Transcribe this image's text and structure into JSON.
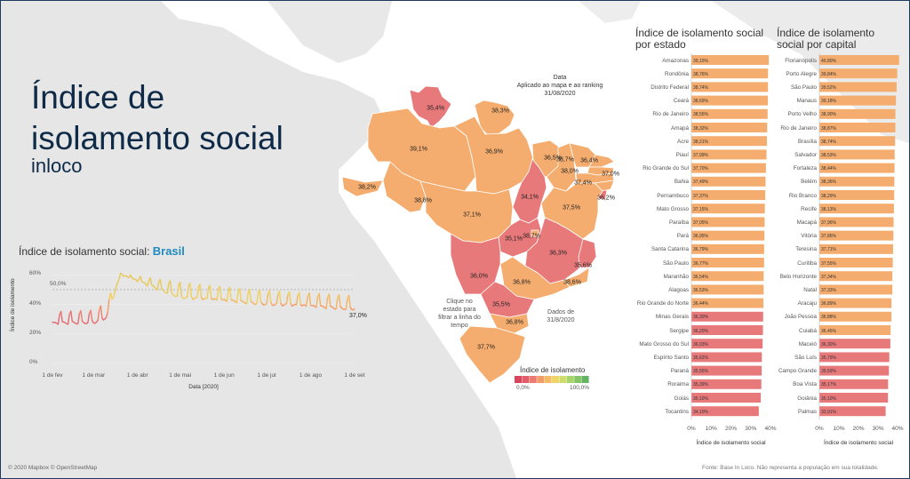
{
  "title_line1": "Índice de",
  "title_line2": "isolamento social",
  "brand": "inloco",
  "line_chart": {
    "title_prefix": "Índice de isolamento social: ",
    "title_highlight": "Brasil",
    "ylabel": "Índice de isolamento",
    "xlabel": "Data [2020]",
    "reference_label": "50,0%",
    "last_label": "37,0%"
  },
  "map_notes": {
    "data_title": "Data",
    "data_sub": "Aplicado ao mapa e ao ranking",
    "data_date": "31/08/2020",
    "click_note": "Clique no estado para filtrar a linha do tempo",
    "dados_note": "Dados de 31/8/2020",
    "legend_title": "Índice de isolamento",
    "legend_min": "0,0%",
    "legend_max": "100,0%"
  },
  "chart_data": [
    {
      "type": "line",
      "title": "Índice de isolamento social: Brasil",
      "xlabel": "Data [2020]",
      "ylabel": "Índice de isolamento",
      "x_ticks": [
        "1 de fev",
        "1 de mar",
        "1 de abr",
        "1 de mai",
        "1 de jun",
        "1 de jul",
        "1 de ago",
        "1 de set"
      ],
      "y_ticks": [
        "0%",
        "20%",
        "40%",
        "60%"
      ],
      "ylim": [
        0,
        65
      ],
      "reference_line": 50.0,
      "weekday_base": [
        [
          0,
          27
        ],
        [
          30,
          28
        ],
        [
          38,
          31
        ],
        [
          48,
          60
        ],
        [
          90,
          45
        ],
        [
          140,
          41
        ],
        [
          210,
          37
        ]
      ],
      "weekend_peak": [
        [
          0,
          35
        ],
        [
          30,
          36
        ],
        [
          38,
          42
        ],
        [
          48,
          61
        ],
        [
          90,
          55
        ],
        [
          140,
          50
        ],
        [
          210,
          46
        ]
      ],
      "last_value": 37.0
    },
    {
      "type": "bar",
      "title": "Índice de isolamento social por estado",
      "xlabel": "Índice de isolamento social",
      "x_ticks": [
        "0%",
        "10%",
        "20%",
        "30%",
        "40%"
      ],
      "xlim": [
        0,
        40
      ],
      "categories": [
        "Amazonas",
        "Rondônia",
        "Distrito Federal",
        "Ceará",
        "Rio de Janeiro",
        "Amapá",
        "Acre",
        "Piauí",
        "Rio Grande do Sul",
        "Bahia",
        "Pernambuco",
        "Mato Grosso",
        "Paraíba",
        "Pará",
        "Santa Catarina",
        "São Paulo",
        "Maranhão",
        "Alagoas",
        "Rio Grande do Norte",
        "Minas Gerais",
        "Sergipe",
        "Mato Grosso do Sul",
        "Espírito Santo",
        "Paraná",
        "Roraima",
        "Goiás",
        "Tocantins"
      ],
      "values": [
        39.15,
        38.76,
        38.74,
        38.69,
        38.55,
        38.32,
        38.21,
        37.99,
        37.7,
        37.49,
        37.37,
        37.15,
        37.05,
        36.95,
        36.79,
        36.77,
        36.54,
        36.53,
        36.44,
        36.3,
        36.2,
        36.03,
        35.62,
        35.55,
        35.39,
        35.1,
        34.1
      ],
      "value_labels": [
        "39,15%",
        "38,76%",
        "38,74%",
        "38,69%",
        "38,55%",
        "38,32%",
        "38,21%",
        "37,99%",
        "37,70%",
        "37,49%",
        "37,37%",
        "37,15%",
        "37,05%",
        "36,95%",
        "36,79%",
        "36,77%",
        "36,54%",
        "36,53%",
        "36,44%",
        "36,30%",
        "36,20%",
        "36,03%",
        "35,62%",
        "35,55%",
        "35,39%",
        "35,10%",
        "34,10%"
      ]
    },
    {
      "type": "bar",
      "title": "Índice de isolamento social por capital",
      "xlabel": "Índice de isolamento social",
      "x_ticks": [
        "0%",
        "10%",
        "20%",
        "30%",
        "40%"
      ],
      "xlim": [
        0,
        40
      ],
      "categories": [
        "Florianópolis",
        "Porto Alegre",
        "São Paulo",
        "Manaus",
        "Porto Velho",
        "Rio de Janeiro",
        "Brasília",
        "Salvador",
        "Fortaleza",
        "Belém",
        "Rio Branco",
        "Recife",
        "Macapá",
        "Vitória",
        "Teresina",
        "Curitiba",
        "Belo Horizonte",
        "Natal",
        "Aracaju",
        "João Pessoa",
        "Cuiabá",
        "Maceió",
        "São Luís",
        "Campo Grande",
        "Boa Vista",
        "Goiânia",
        "Palmas"
      ],
      "values": [
        40.8,
        39.84,
        39.52,
        39.18,
        38.9,
        38.87,
        38.74,
        38.53,
        38.44,
        38.36,
        38.29,
        38.13,
        37.96,
        37.86,
        37.71,
        37.55,
        37.34,
        37.33,
        36.89,
        36.88,
        36.45,
        36.3,
        35.79,
        35.59,
        35.17,
        35.1,
        33.91
      ],
      "value_labels": [
        "40,80%",
        "39,84%",
        "39,52%",
        "39,18%",
        "38,90%",
        "38,87%",
        "38,74%",
        "38,53%",
        "38,44%",
        "38,36%",
        "38,29%",
        "38,13%",
        "37,96%",
        "37,86%",
        "37,71%",
        "37,55%",
        "37,34%",
        "37,33%",
        "36,89%",
        "36,88%",
        "36,45%",
        "36,30%",
        "35,79%",
        "35,59%",
        "35,17%",
        "35,10%",
        "33,91%"
      ]
    }
  ],
  "map_labels": [
    "35,4%",
    "38,3%",
    "39,1%",
    "36,9%",
    "36,5%",
    "38,7%",
    "36,4%",
    "38,0%",
    "37,0%",
    "37,4%",
    "36,2%",
    "38,2%",
    "38,8%",
    "37,1%",
    "34,1%",
    "37,5%",
    "35,1%",
    "38,7%",
    "36,3%",
    "36,0%",
    "35,6%",
    "36,8%",
    "38,6%",
    "35,5%",
    "36,8%",
    "37,7%"
  ],
  "colors": {
    "orange": "#f4ad6e",
    "red": "#e8797b",
    "border": "#1f3a5c"
  },
  "footer": {
    "attribution": "© 2020 Mapbox © OpenStreetMap",
    "source": "Fonte: Base In Loco. Não representa a população em sua totalidade."
  }
}
